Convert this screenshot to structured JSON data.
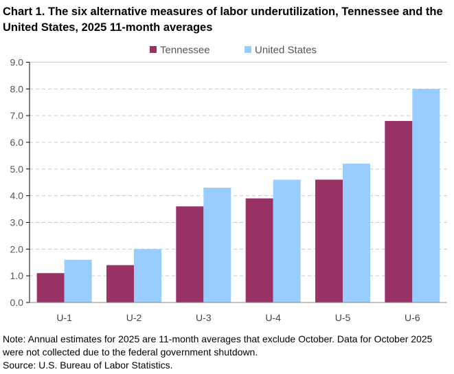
{
  "chart_data": {
    "type": "bar",
    "title": "Chart 1. The six alternative measures of labor underutilization, Tennessee and the United States, 2025 11-month averages",
    "categories": [
      "U-1",
      "U-2",
      "U-3",
      "U-4",
      "U-5",
      "U-6"
    ],
    "series": [
      {
        "name": "Tennessee",
        "color": "#993366",
        "values": [
          1.1,
          1.4,
          3.6,
          3.9,
          4.6,
          6.8
        ]
      },
      {
        "name": "United States",
        "color": "#99CCFF",
        "values": [
          1.6,
          2.0,
          4.3,
          4.6,
          5.2,
          8.0
        ]
      }
    ],
    "ylim": [
      0,
      9
    ],
    "yticks": [
      "0.0",
      "1.0",
      "2.0",
      "3.0",
      "4.0",
      "5.0",
      "6.0",
      "7.0",
      "8.0",
      "9.0"
    ],
    "grid": true,
    "legend": "top"
  },
  "note": "Note: Annual estimates for 2025 are 11-month averages that exclude October. Data for October 2025 were not collected due to the federal government shutdown.",
  "source": "Source: U.S. Bureau of Labor Statistics."
}
